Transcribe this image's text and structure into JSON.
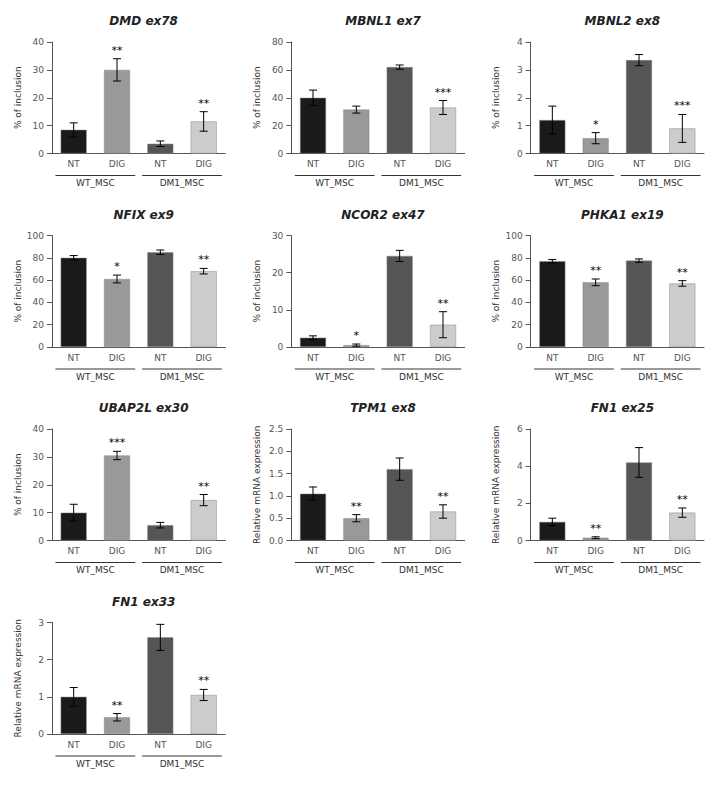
{
  "chart_data": [
    {
      "type": "bar",
      "title": "DMD ex78",
      "ylabel": "% of inclusion",
      "categories": [
        "NT",
        "DIG",
        "NT",
        "DIG"
      ],
      "groups": [
        "WT_MSC",
        "WT_MSC",
        "DM1_MSC",
        "DM1_MSC"
      ],
      "values": [
        8.5,
        30.0,
        3.5,
        11.5
      ],
      "errors": [
        2.5,
        4.0,
        1.0,
        3.5
      ],
      "colors": [
        "#1a1a1a",
        "#999999",
        "#555555",
        "#cccccc"
      ],
      "significance": [
        null,
        "**",
        null,
        "**"
      ],
      "ylim": [
        0,
        40
      ],
      "yticks": [
        0,
        10,
        20,
        30,
        40
      ],
      "grid": false
    },
    {
      "type": "bar",
      "title": "MBNL1 ex7",
      "ylabel": "% of inclusion",
      "categories": [
        "NT",
        "DIG",
        "NT",
        "DIG"
      ],
      "groups": [
        "WT_MSC",
        "WT_MSC",
        "DM1_MSC",
        "DM1_MSC"
      ],
      "values": [
        40.0,
        31.5,
        62.0,
        33.0
      ],
      "errors": [
        5.5,
        2.5,
        1.5,
        5.0
      ],
      "colors": [
        "#1a1a1a",
        "#999999",
        "#555555",
        "#cccccc"
      ],
      "significance": [
        null,
        null,
        null,
        "***"
      ],
      "ylim": [
        0,
        80
      ],
      "yticks": [
        0,
        20,
        40,
        60,
        80
      ],
      "grid": false
    },
    {
      "type": "bar",
      "title": "MBNL2 ex8",
      "ylabel": "% of inclusion",
      "categories": [
        "NT",
        "DIG",
        "NT",
        "DIG"
      ],
      "groups": [
        "WT_MSC",
        "WT_MSC",
        "DM1_MSC",
        "DM1_MSC"
      ],
      "values": [
        1.2,
        0.55,
        3.35,
        0.9
      ],
      "errors": [
        0.5,
        0.2,
        0.2,
        0.5
      ],
      "colors": [
        "#1a1a1a",
        "#999999",
        "#555555",
        "#cccccc"
      ],
      "significance": [
        null,
        "*",
        null,
        "***"
      ],
      "ylim": [
        0,
        4
      ],
      "yticks": [
        0,
        1,
        2,
        3,
        4
      ],
      "grid": false
    },
    {
      "type": "bar",
      "title": "NFIX ex9",
      "ylabel": "% of inclusion",
      "categories": [
        "NT",
        "DIG",
        "NT",
        "DIG"
      ],
      "groups": [
        "WT_MSC",
        "WT_MSC",
        "DM1_MSC",
        "DM1_MSC"
      ],
      "values": [
        80.0,
        61.0,
        85.0,
        68.0
      ],
      "errors": [
        2.0,
        3.5,
        2.0,
        2.5
      ],
      "colors": [
        "#1a1a1a",
        "#999999",
        "#555555",
        "#cccccc"
      ],
      "significance": [
        null,
        "*",
        null,
        "**"
      ],
      "ylim": [
        0,
        100
      ],
      "yticks": [
        0,
        20,
        40,
        60,
        80,
        100
      ],
      "grid": false
    },
    {
      "type": "bar",
      "title": "NCOR2 ex47",
      "ylabel": "% of inclusion",
      "categories": [
        "NT",
        "DIG",
        "NT",
        "DIG"
      ],
      "groups": [
        "WT_MSC",
        "WT_MSC",
        "DM1_MSC",
        "DM1_MSC"
      ],
      "values": [
        2.5,
        0.5,
        24.5,
        6.0
      ],
      "errors": [
        0.5,
        0.3,
        1.5,
        3.5
      ],
      "colors": [
        "#1a1a1a",
        "#999999",
        "#555555",
        "#cccccc"
      ],
      "significance": [
        null,
        "*",
        null,
        "**"
      ],
      "ylim": [
        0,
        30
      ],
      "yticks": [
        0,
        10,
        20,
        30
      ],
      "grid": false
    },
    {
      "type": "bar",
      "title": "PHKA1 ex19",
      "ylabel": "% of inclusion",
      "categories": [
        "NT",
        "DIG",
        "NT",
        "DIG"
      ],
      "groups": [
        "WT_MSC",
        "WT_MSC",
        "DM1_MSC",
        "DM1_MSC"
      ],
      "values": [
        77.0,
        58.0,
        77.5,
        57.0
      ],
      "errors": [
        1.5,
        3.0,
        1.5,
        2.5
      ],
      "colors": [
        "#1a1a1a",
        "#999999",
        "#555555",
        "#cccccc"
      ],
      "significance": [
        null,
        "**",
        null,
        "**"
      ],
      "ylim": [
        0,
        100
      ],
      "yticks": [
        0,
        20,
        40,
        60,
        80,
        100
      ],
      "grid": false
    },
    {
      "type": "bar",
      "title": "UBAP2L ex30",
      "ylabel": "% of inclusion",
      "categories": [
        "NT",
        "DIG",
        "NT",
        "DIG"
      ],
      "groups": [
        "WT_MSC",
        "WT_MSC",
        "DM1_MSC",
        "DM1_MSC"
      ],
      "values": [
        10.0,
        30.5,
        5.5,
        14.5
      ],
      "errors": [
        3.0,
        1.5,
        1.0,
        2.0
      ],
      "colors": [
        "#1a1a1a",
        "#999999",
        "#555555",
        "#cccccc"
      ],
      "significance": [
        null,
        "***",
        null,
        "**"
      ],
      "ylim": [
        0,
        40
      ],
      "yticks": [
        0,
        10,
        20,
        30,
        40
      ],
      "grid": false
    },
    {
      "type": "bar",
      "title": "TPM1 ex8",
      "ylabel": "Relative mRNA expression",
      "categories": [
        "NT",
        "DIG",
        "NT",
        "DIG"
      ],
      "groups": [
        "WT_MSC",
        "WT_MSC",
        "DM1_MSC",
        "DM1_MSC"
      ],
      "values": [
        1.05,
        0.5,
        1.6,
        0.65
      ],
      "errors": [
        0.15,
        0.08,
        0.25,
        0.15
      ],
      "colors": [
        "#1a1a1a",
        "#999999",
        "#555555",
        "#cccccc"
      ],
      "significance": [
        null,
        "**",
        null,
        "**"
      ],
      "ylim": [
        0,
        2.5
      ],
      "yticks": [
        {
          "value": 0,
          "label": "0.0"
        },
        0.5,
        {
          "value": 1,
          "label": "1.0"
        },
        1.5,
        {
          "value": 2,
          "label": "2.0"
        },
        2.5
      ],
      "grid": false
    },
    {
      "type": "bar",
      "title": "FN1 ex25",
      "ylabel": "Relative mRNA expression",
      "categories": [
        "NT",
        "DIG",
        "NT",
        "DIG"
      ],
      "groups": [
        "WT_MSC",
        "WT_MSC",
        "DM1_MSC",
        "DM1_MSC"
      ],
      "values": [
        1.0,
        0.15,
        4.2,
        1.5
      ],
      "errors": [
        0.2,
        0.05,
        0.8,
        0.25
      ],
      "colors": [
        "#1a1a1a",
        "#999999",
        "#555555",
        "#cccccc"
      ],
      "significance": [
        null,
        "**",
        null,
        "**"
      ],
      "ylim": [
        0,
        6
      ],
      "yticks": [
        0,
        2,
        4,
        6
      ],
      "grid": false
    },
    {
      "type": "bar",
      "title": "FN1 ex33",
      "ylabel": "Relative mRNA expression",
      "categories": [
        "NT",
        "DIG",
        "NT",
        "DIG"
      ],
      "groups": [
        "WT_MSC",
        "WT_MSC",
        "DM1_MSC",
        "DM1_MSC"
      ],
      "values": [
        1.0,
        0.45,
        2.6,
        1.05
      ],
      "errors": [
        0.25,
        0.1,
        0.35,
        0.15
      ],
      "colors": [
        "#1a1a1a",
        "#999999",
        "#555555",
        "#cccccc"
      ],
      "significance": [
        null,
        "**",
        null,
        "**"
      ],
      "ylim": [
        0,
        3
      ],
      "yticks": [
        0,
        1,
        2,
        3
      ],
      "grid": false
    }
  ]
}
